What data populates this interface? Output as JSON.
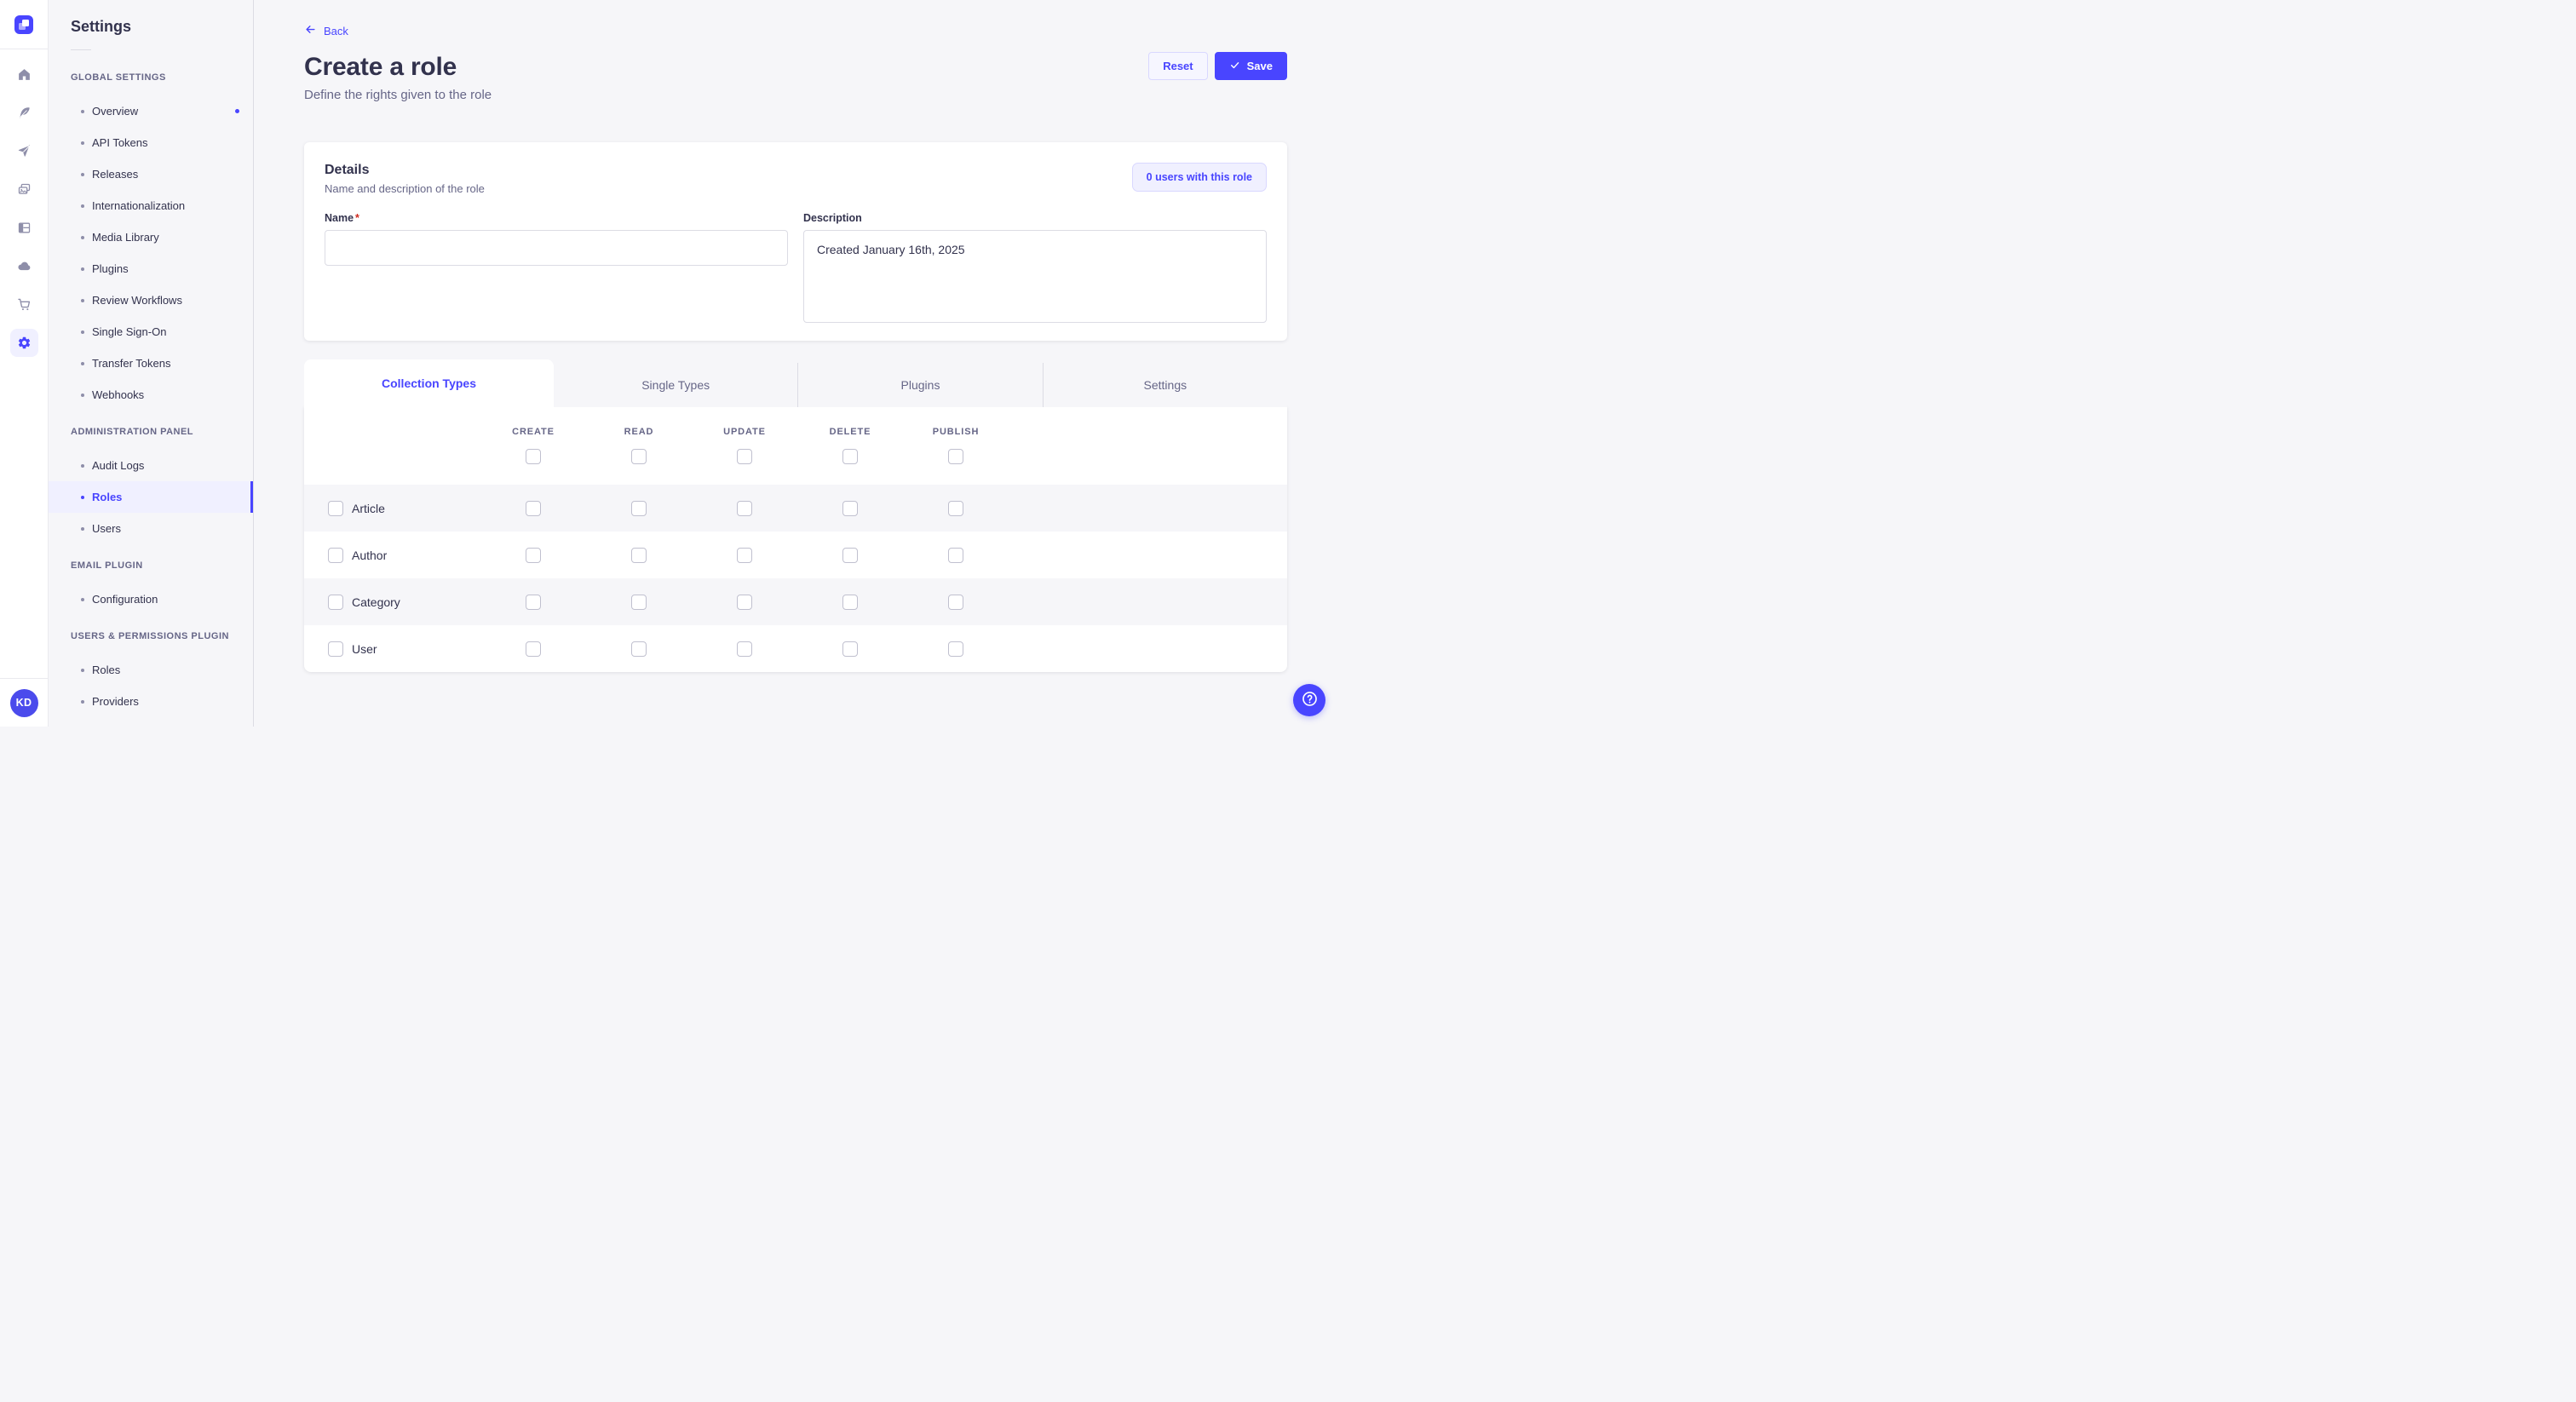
{
  "colors": {
    "primary": "#4945FF",
    "primary_bg": "#F0F0FF",
    "text_dark": "#32324D",
    "text_gray": "#666687",
    "background": "#F6F6F9"
  },
  "icon_rail": {
    "logo_icon": "strapi-logo",
    "items": [
      {
        "icon": "home-icon",
        "active": false
      },
      {
        "icon": "feather-icon",
        "active": false
      },
      {
        "icon": "send-icon",
        "active": false
      },
      {
        "icon": "media-library-icon",
        "active": false
      },
      {
        "icon": "layout-icon",
        "active": false
      },
      {
        "icon": "cloud-icon",
        "active": false
      },
      {
        "icon": "cart-icon",
        "active": false
      },
      {
        "icon": "gear-icon",
        "active": true
      }
    ],
    "avatar_initials": "KD"
  },
  "subnav": {
    "title": "Settings",
    "sections": [
      {
        "label": "GLOBAL SETTINGS",
        "items": [
          {
            "label": "Overview",
            "notification": true
          },
          {
            "label": "API Tokens"
          },
          {
            "label": "Releases"
          },
          {
            "label": "Internationalization"
          },
          {
            "label": "Media Library"
          },
          {
            "label": "Plugins"
          },
          {
            "label": "Review Workflows"
          },
          {
            "label": "Single Sign-On"
          },
          {
            "label": "Transfer Tokens"
          },
          {
            "label": "Webhooks"
          }
        ]
      },
      {
        "label": "ADMINISTRATION PANEL",
        "items": [
          {
            "label": "Audit Logs"
          },
          {
            "label": "Roles",
            "active": true
          },
          {
            "label": "Users"
          }
        ]
      },
      {
        "label": "EMAIL PLUGIN",
        "items": [
          {
            "label": "Configuration"
          }
        ]
      },
      {
        "label": "USERS & PERMISSIONS PLUGIN",
        "items": [
          {
            "label": "Roles"
          },
          {
            "label": "Providers"
          }
        ]
      }
    ]
  },
  "header": {
    "back_label": "Back",
    "title": "Create a role",
    "subtitle": "Define the rights given to the role",
    "reset_label": "Reset",
    "save_label": "Save"
  },
  "details": {
    "title": "Details",
    "subtitle": "Name and description of the role",
    "users_button": "0 users with this role",
    "name_label": "Name",
    "name_required": "*",
    "name_value": "",
    "description_label": "Description",
    "description_value": "Created January 16th, 2025"
  },
  "permissions": {
    "tabs": [
      {
        "label": "Collection Types",
        "active": true
      },
      {
        "label": "Single Types",
        "active": false
      },
      {
        "label": "Plugins",
        "active": false
      },
      {
        "label": "Settings",
        "active": false
      }
    ],
    "columns": [
      "CREATE",
      "READ",
      "UPDATE",
      "DELETE",
      "PUBLISH"
    ],
    "rows": [
      {
        "label": "Article",
        "checks": [
          false,
          false,
          false,
          false,
          false
        ]
      },
      {
        "label": "Author",
        "checks": [
          false,
          false,
          false,
          false,
          false
        ]
      },
      {
        "label": "Category",
        "checks": [
          false,
          false,
          false,
          false,
          false
        ]
      },
      {
        "label": "User",
        "checks": [
          false,
          false,
          false,
          false,
          false
        ]
      }
    ],
    "select_all_checked": [
      false,
      false,
      false,
      false,
      false
    ]
  }
}
